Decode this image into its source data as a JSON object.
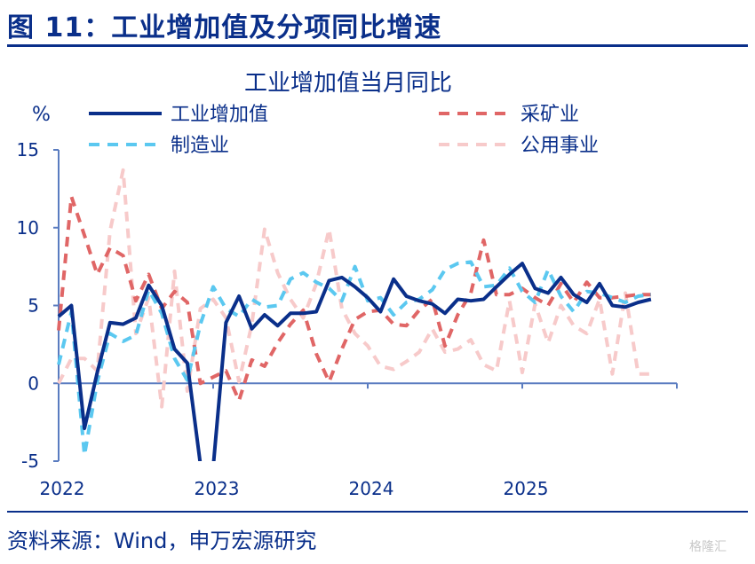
{
  "header": {
    "title": "图 11：工业增加值及分项同比增速",
    "source": "资料来源：Wind，申万宏源研究",
    "watermark": "格隆汇"
  },
  "chart_data": {
    "type": "line",
    "title": "工业增加值当月同比",
    "ylabel": "%",
    "ylim": [
      -5,
      15
    ],
    "yticks": [
      "15",
      "10",
      "5",
      "0",
      "-5"
    ],
    "xlim": [
      2022.0,
      2026.0
    ],
    "xticks": [
      "2022",
      "2023",
      "2024",
      "2025"
    ],
    "legend_position": "top",
    "grid": false,
    "series": [
      {
        "name": "工业增加值",
        "color": "#0a2f8a",
        "dash": "solid",
        "x": [
          2022.0,
          2022.083,
          2022.167,
          2022.25,
          2022.333,
          2022.417,
          2022.5,
          2022.583,
          2022.667,
          2022.75,
          2022.833,
          2022.917,
          2023.0,
          2023.083,
          2023.167,
          2023.25,
          2023.333,
          2023.417,
          2023.5,
          2023.583,
          2023.667,
          2023.75,
          2023.833,
          2023.917,
          2024.0,
          2024.083,
          2024.167,
          2024.25,
          2024.333,
          2024.417,
          2024.5,
          2024.583,
          2024.667,
          2024.75,
          2024.833,
          2024.917,
          2025.0,
          2025.083,
          2025.167,
          2025.25,
          2025.333,
          2025.417,
          2025.5,
          2025.583,
          2025.667,
          2025.75,
          2025.833
        ],
        "values": [
          4.3,
          5.0,
          -2.9,
          0.7,
          3.9,
          3.8,
          4.2,
          6.3,
          5.0,
          2.2,
          1.3,
          -5.2,
          -5.4,
          3.9,
          5.6,
          3.5,
          4.4,
          3.7,
          4.5,
          4.5,
          4.6,
          6.6,
          6.8,
          6.2,
          5.5,
          4.6,
          6.7,
          5.6,
          5.3,
          5.1,
          4.5,
          5.4,
          5.3,
          5.4,
          6.2,
          7.0,
          7.7,
          6.1,
          5.8,
          6.8,
          5.7,
          5.2,
          6.4,
          5.0,
          4.9,
          5.2,
          5.4
        ]
      },
      {
        "name": "采矿业",
        "color": "#e06666",
        "dash": "dashed",
        "x": [
          2022.0,
          2022.083,
          2022.167,
          2022.25,
          2022.333,
          2022.417,
          2022.5,
          2022.583,
          2022.667,
          2022.75,
          2022.833,
          2022.917,
          2023.0,
          2023.083,
          2023.167,
          2023.25,
          2023.333,
          2023.417,
          2023.5,
          2023.583,
          2023.667,
          2023.75,
          2023.833,
          2023.917,
          2024.0,
          2024.083,
          2024.167,
          2024.25,
          2024.333,
          2024.417,
          2024.5,
          2024.583,
          2024.667,
          2024.75,
          2024.833,
          2024.917,
          2025.0,
          2025.083,
          2025.167,
          2025.25,
          2025.333,
          2025.417,
          2025.5,
          2025.583,
          2025.667,
          2025.75,
          2025.833
        ],
        "values": [
          3.4,
          12.0,
          9.5,
          7.0,
          8.7,
          8.2,
          5.3,
          7.0,
          4.8,
          5.9,
          5.2,
          0.0,
          0.4,
          0.8,
          -1.1,
          1.5,
          1.1,
          2.6,
          3.8,
          4.7,
          1.9,
          0.1,
          2.2,
          4.1,
          4.6,
          4.7,
          3.8,
          3.7,
          4.7,
          5.4,
          2.4,
          4.4,
          5.8,
          9.2,
          5.7,
          5.7,
          6.1,
          5.5,
          5.0,
          6.4,
          5.2,
          6.5,
          5.5,
          5.5,
          5.6,
          5.7,
          5.7
        ]
      },
      {
        "name": "制造业",
        "color": "#5bc8f0",
        "dash": "dashed",
        "x": [
          2022.0,
          2022.083,
          2022.167,
          2022.25,
          2022.333,
          2022.417,
          2022.5,
          2022.583,
          2022.667,
          2022.75,
          2022.833,
          2022.917,
          2023.0,
          2023.083,
          2023.167,
          2023.25,
          2023.333,
          2023.417,
          2023.5,
          2023.583,
          2023.667,
          2023.75,
          2023.833,
          2023.917,
          2024.0,
          2024.083,
          2024.167,
          2024.25,
          2024.333,
          2024.417,
          2024.5,
          2024.583,
          2024.667,
          2024.75,
          2024.833,
          2024.917,
          2025.0,
          2025.083,
          2025.167,
          2025.25,
          2025.333,
          2025.417,
          2025.5,
          2025.583,
          2025.667,
          2025.75,
          2025.833
        ],
        "values": [
          1.2,
          4.6,
          -4.6,
          0.1,
          3.2,
          2.7,
          3.1,
          6.0,
          4.5,
          1.6,
          0.2,
          3.8,
          6.2,
          4.8,
          4.3,
          5.4,
          4.9,
          5.0,
          6.7,
          7.1,
          6.5,
          6.1,
          5.3,
          7.5,
          5.3,
          5.5,
          4.4,
          5.2,
          5.4,
          6.0,
          7.3,
          7.7,
          7.8,
          6.2,
          6.3,
          7.4,
          5.9,
          5.2,
          7.3,
          5.6,
          4.6,
          5.9,
          5.8,
          5.5,
          5.2,
          5.6,
          5.7
        ]
      },
      {
        "name": "公用事业",
        "color": "#f7caca",
        "dash": "dashed",
        "x": [
          2022.0,
          2022.083,
          2022.167,
          2022.25,
          2022.333,
          2022.417,
          2022.5,
          2022.583,
          2022.667,
          2022.75,
          2022.833,
          2022.917,
          2023.0,
          2023.083,
          2023.167,
          2023.25,
          2023.333,
          2023.417,
          2023.5,
          2023.583,
          2023.667,
          2023.75,
          2023.833,
          2023.917,
          2024.0,
          2024.083,
          2024.167,
          2024.25,
          2024.333,
          2024.417,
          2024.5,
          2024.583,
          2024.667,
          2024.75,
          2024.833,
          2024.917,
          2025.0,
          2025.083,
          2025.167,
          2025.25,
          2025.333,
          2025.417,
          2025.5,
          2025.583,
          2025.667,
          2025.75,
          2025.833
        ],
        "values": [
          0.0,
          1.6,
          1.6,
          0.8,
          9.8,
          13.7,
          3.2,
          5.5,
          -1.5,
          7.2,
          -0.5,
          4.8,
          5.4,
          4.2,
          0.1,
          3.8,
          9.9,
          7.1,
          5.4,
          4.2,
          6.4,
          9.9,
          4.8,
          3.2,
          2.4,
          1.1,
          0.9,
          1.4,
          2.0,
          3.5,
          2.0,
          2.2,
          2.8,
          1.2,
          0.8,
          5.3,
          0.7,
          5.1,
          2.6,
          5.0,
          3.7,
          3.2,
          5.4,
          0.6,
          5.8,
          0.6,
          0.6
        ]
      }
    ]
  }
}
